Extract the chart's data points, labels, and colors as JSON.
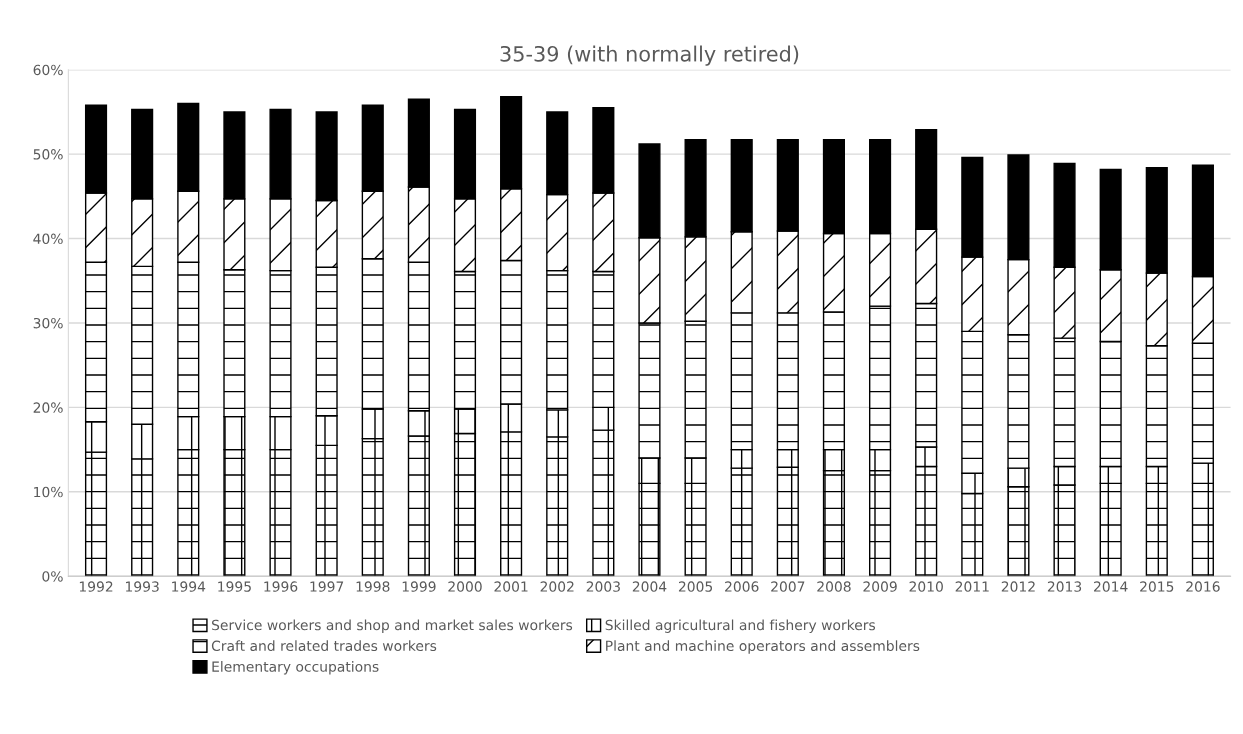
{
  "chart_data": {
    "type": "bar",
    "stacked": true,
    "title": "35-39 (with normally retired)",
    "categories": [
      "1992",
      "1993",
      "1994",
      "1995",
      "1996",
      "1997",
      "1998",
      "1999",
      "2000",
      "2001",
      "2002",
      "2003",
      "2004",
      "2005",
      "2006",
      "2007",
      "2008",
      "2009",
      "2010",
      "2011",
      "2012",
      "2013",
      "2014",
      "2015",
      "2016"
    ],
    "series": [
      {
        "name": "Service workers and shop and market sales workers",
        "color": "#000000",
        "values": [
          14.7,
          13.9,
          15.0,
          15.0,
          15.0,
          15.5,
          16.3,
          16.6,
          16.9,
          17.1,
          16.5,
          17.3,
          11.0,
          11.0,
          12.8,
          12.9,
          12.5,
          12.5,
          13.0,
          9.8,
          10.6,
          10.8,
          11.0,
          11.0,
          11.0
        ]
      },
      {
        "name": "Skilled agricultural and fishery workers",
        "color": "#000000",
        "values": [
          3.6,
          4.1,
          3.9,
          3.9,
          3.9,
          3.5,
          3.5,
          3.0,
          2.9,
          3.3,
          3.2,
          2.7,
          3.0,
          3.0,
          2.2,
          2.1,
          2.5,
          2.5,
          2.3,
          2.4,
          2.2,
          2.2,
          2.0,
          2.0,
          2.4
        ]
      },
      {
        "name": "Craft and related trades workers",
        "color": "#000000",
        "values": [
          18.9,
          18.7,
          18.3,
          17.4,
          17.3,
          17.6,
          17.8,
          17.6,
          16.3,
          17.0,
          16.5,
          16.1,
          16.0,
          16.2,
          16.2,
          16.2,
          16.3,
          17.0,
          17.0,
          16.8,
          15.8,
          15.2,
          14.8,
          14.3,
          14.2
        ]
      },
      {
        "name": "Plant and machine operators and assemblers",
        "color": "#000000",
        "values": [
          8.2,
          8.0,
          8.4,
          8.4,
          8.5,
          7.9,
          8.0,
          8.9,
          8.6,
          8.5,
          9.0,
          9.3,
          10.1,
          10.0,
          9.6,
          9.7,
          9.3,
          8.6,
          8.8,
          8.8,
          8.9,
          8.4,
          8.5,
          8.6,
          7.9
        ]
      },
      {
        "name": "Elementary occupations",
        "color": "#000000",
        "values": [
          10.4,
          10.6,
          10.4,
          10.3,
          10.6,
          10.5,
          10.2,
          10.4,
          10.6,
          10.9,
          9.8,
          10.1,
          11.1,
          11.5,
          10.9,
          10.8,
          11.1,
          11.1,
          11.8,
          11.8,
          12.4,
          12.3,
          11.9,
          12.5,
          13.2
        ]
      }
    ],
    "ylim": [
      0,
      60
    ],
    "yticks": [
      {
        "value": 0,
        "label": "0%"
      },
      {
        "value": 10,
        "label": "10%"
      },
      {
        "value": 20,
        "label": "20%"
      },
      {
        "value": 30,
        "label": "30%"
      },
      {
        "value": 40,
        "label": "40%"
      },
      {
        "value": 50,
        "label": "50%"
      },
      {
        "value": 60,
        "label": "60%"
      }
    ],
    "grid": "y",
    "legend": "bottom"
  }
}
